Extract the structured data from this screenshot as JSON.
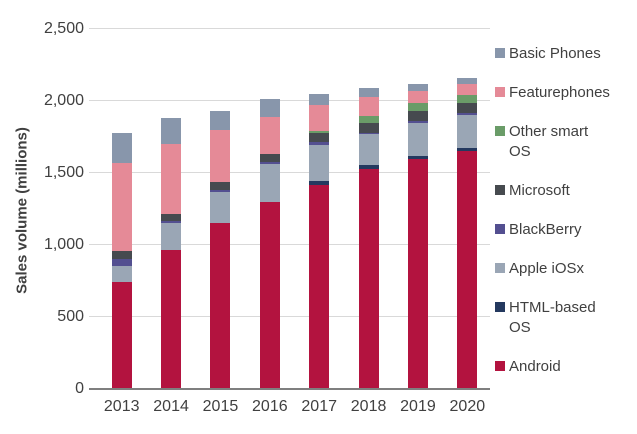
{
  "chart_data": {
    "type": "bar",
    "subtype": "stacked-vertical",
    "title": "",
    "xlabel": "",
    "ylabel": "Sales volume (millions)",
    "ylim": [
      0,
      2500
    ],
    "ytick_interval": 500,
    "yticks": [
      {
        "value": 0,
        "label": "0"
      },
      {
        "value": 500,
        "label": "500"
      },
      {
        "value": 1000,
        "label": "1,000"
      },
      {
        "value": 1500,
        "label": "1,500"
      },
      {
        "value": 2000,
        "label": "2,000"
      },
      {
        "value": 2500,
        "label": "2,500"
      }
    ],
    "grid": true,
    "legend_position": "right",
    "categories": [
      "2013",
      "2014",
      "2015",
      "2016",
      "2017",
      "2018",
      "2019",
      "2020"
    ],
    "series": [
      {
        "name": "Android",
        "color": "#b3133f",
        "values": [
          740,
          965,
          1150,
          1300,
          1420,
          1525,
          1595,
          1650
        ]
      },
      {
        "name": "HTML-based OS",
        "color": "#24395f",
        "values": [
          0,
          0,
          0,
          0,
          25,
          30,
          25,
          25
        ]
      },
      {
        "name": "Apple iOSx",
        "color": "#9aa6b5",
        "values": [
          115,
          185,
          215,
          260,
          250,
          215,
          225,
          225
        ]
      },
      {
        "name": "BlackBerry",
        "color": "#534f90",
        "values": [
          45,
          15,
          15,
          15,
          20,
          10,
          15,
          15
        ]
      },
      {
        "name": "Microsoft",
        "color": "#464a4f",
        "values": [
          60,
          50,
          55,
          60,
          60,
          65,
          70,
          70
        ]
      },
      {
        "name": "Other smart OS",
        "color": "#6a9c68",
        "values": [
          0,
          0,
          0,
          0,
          20,
          50,
          55,
          55
        ]
      },
      {
        "name": "Featurephones",
        "color": "#e58a97",
        "values": [
          610,
          490,
          365,
          255,
          180,
          130,
          85,
          80
        ]
      },
      {
        "name": "Basic Phones",
        "color": "#8896ab",
        "values": [
          205,
          175,
          130,
          125,
          75,
          65,
          50,
          40
        ]
      }
    ],
    "totals": [
      1775,
      1880,
      1930,
      2015,
      2050,
      2090,
      2120,
      2160
    ],
    "legend": [
      "Basic Phones",
      "Featurephones",
      "Other smart OS",
      "Microsoft",
      "BlackBerry",
      "Apple iOSx",
      "HTML-based OS",
      "Android"
    ],
    "colors": {
      "text": "#404040",
      "gridline": "#d9d9d9",
      "axis_line": "#7f7f7f",
      "background": "#ffffff"
    }
  }
}
